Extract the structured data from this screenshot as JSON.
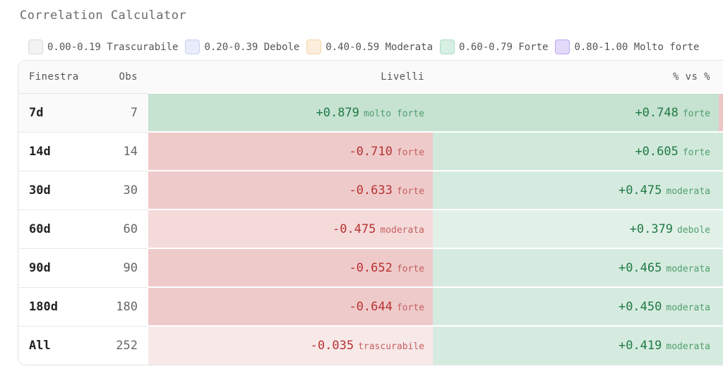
{
  "app": {
    "title": "Correlation Calculator"
  },
  "legend": [
    {
      "label": "0.00-0.19 Trascurabile",
      "fill": "#f3f3f3",
      "border": "#d9d9d9"
    },
    {
      "label": "0.20-0.39 Debole",
      "fill": "#e8ecfb",
      "border": "#c7d0f0"
    },
    {
      "label": "0.40-0.59 Moderata",
      "fill": "#fdeedb",
      "border": "#f3d3a8"
    },
    {
      "label": "0.60-0.79 Forte",
      "fill": "#d7f0e3",
      "border": "#a9dcc0"
    },
    {
      "label": "0.80-1.00 Molto forte",
      "fill": "#e2d9fb",
      "border": "#b9a8ee"
    }
  ],
  "table": {
    "headers": {
      "finestra": "Finestra",
      "obs": "Obs",
      "livelli": "Livelli",
      "pct": "% vs %"
    },
    "rows": [
      {
        "finestra": "7d",
        "obs": "7",
        "livelli": {
          "value": "+0.879",
          "label": "molto forte",
          "sign": "pos",
          "bg": "#c6e2d0"
        },
        "pct": {
          "value": "+0.748",
          "label": "forte",
          "sign": "pos",
          "bg": "#c6e2d0"
        },
        "extra_bg": "#ecc6c6"
      },
      {
        "finestra": "14d",
        "obs": "14",
        "livelli": {
          "value": "-0.710",
          "label": "forte",
          "sign": "neg",
          "bg": "#efcaca"
        },
        "pct": {
          "value": "+0.605",
          "label": "forte",
          "sign": "pos",
          "bg": "#d1e9db"
        },
        "extra_bg": "#d1e9db"
      },
      {
        "finestra": "30d",
        "obs": "30",
        "livelli": {
          "value": "-0.633",
          "label": "forte",
          "sign": "neg",
          "bg": "#efcaca"
        },
        "pct": {
          "value": "+0.475",
          "label": "moderata",
          "sign": "pos",
          "bg": "#d6ebdf"
        },
        "extra_bg": "#d6ebdf"
      },
      {
        "finestra": "60d",
        "obs": "60",
        "livelli": {
          "value": "-0.475",
          "label": "moderata",
          "sign": "neg",
          "bg": "#f5dada"
        },
        "pct": {
          "value": "+0.379",
          "label": "debole",
          "sign": "pos",
          "bg": "#e2f1e8"
        },
        "extra_bg": "#e2f1e8"
      },
      {
        "finestra": "90d",
        "obs": "90",
        "livelli": {
          "value": "-0.652",
          "label": "forte",
          "sign": "neg",
          "bg": "#efcaca"
        },
        "pct": {
          "value": "+0.465",
          "label": "moderata",
          "sign": "pos",
          "bg": "#d6ebdf"
        },
        "extra_bg": "#d6ebdf"
      },
      {
        "finestra": "180d",
        "obs": "180",
        "livelli": {
          "value": "-0.644",
          "label": "forte",
          "sign": "neg",
          "bg": "#efcaca"
        },
        "pct": {
          "value": "+0.450",
          "label": "moderata",
          "sign": "pos",
          "bg": "#d6ebdf"
        },
        "extra_bg": "#d6ebdf"
      },
      {
        "finestra": "All",
        "obs": "252",
        "livelli": {
          "value": "-0.035",
          "label": "trascurabile",
          "sign": "neg",
          "bg": "#f8e9e9"
        },
        "pct": {
          "value": "+0.419",
          "label": "moderata",
          "sign": "pos",
          "bg": "#d6ebdf"
        },
        "extra_bg": "#d6ebdf"
      }
    ]
  }
}
